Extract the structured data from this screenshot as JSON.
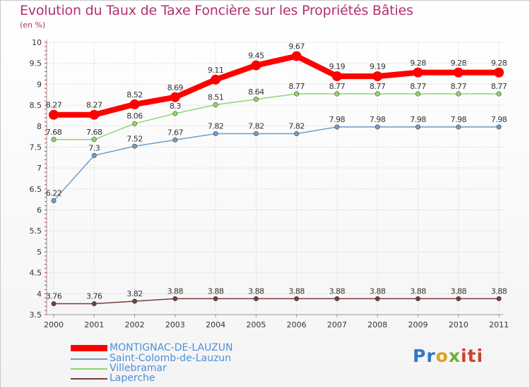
{
  "chart_data": {
    "type": "line",
    "title": "Evolution du Taux de Taxe Foncière sur les Propriétés Bâties",
    "subtitle": "(en %)",
    "x": [
      "2000",
      "2001",
      "2002",
      "2003",
      "2004",
      "2005",
      "2006",
      "2007",
      "2008",
      "2009",
      "2010",
      "2011"
    ],
    "ylim": [
      3.5,
      10
    ],
    "yticks": [
      "3.5",
      "4",
      "4.5",
      "5",
      "5.5",
      "6",
      "6.5",
      "7",
      "7.5",
      "8",
      "8.5",
      "9",
      "9.5",
      "10"
    ],
    "grid": true,
    "legend_position": "bottom-left",
    "series": [
      {
        "name": "MONTIGNAC-DE-LAUZUN",
        "color": "#ff0000",
        "values": [
          8.27,
          8.27,
          8.52,
          8.69,
          9.11,
          9.45,
          9.67,
          9.19,
          9.19,
          9.28,
          9.28,
          9.28
        ],
        "labels": [
          "8.27",
          "8.27",
          "8.52",
          "8.69",
          "9.11",
          "9.45",
          "9.67",
          "9.19",
          "9.19",
          "9.28",
          "9.28",
          "9.28"
        ]
      },
      {
        "name": "Saint-Colomb-de-Lauzun",
        "color": "#6d9ec8",
        "values": [
          6.22,
          7.3,
          7.52,
          7.67,
          7.82,
          7.82,
          7.82,
          7.98,
          7.98,
          7.98,
          7.98,
          7.98
        ],
        "labels": [
          "6.22",
          "7.3",
          "7.52",
          "7.67",
          "7.82",
          "7.82",
          "7.82",
          "7.98",
          "7.98",
          "7.98",
          "7.98",
          "7.98"
        ]
      },
      {
        "name": "Villebramar",
        "color": "#8fd66b",
        "values": [
          7.68,
          7.68,
          8.06,
          8.3,
          8.51,
          8.64,
          8.77,
          8.77,
          8.77,
          8.77,
          8.77,
          8.77
        ],
        "labels": [
          "7.68",
          "7.68",
          "8.06",
          "8.3",
          "8.51",
          "8.64",
          "8.77",
          "8.77",
          "8.77",
          "8.77",
          "8.77",
          "8.77"
        ]
      },
      {
        "name": "Laperche",
        "color": "#7a3a3a",
        "values": [
          3.76,
          3.76,
          3.82,
          3.88,
          3.88,
          3.88,
          3.88,
          3.88,
          3.88,
          3.88,
          3.88,
          3.88
        ],
        "labels": [
          "3.76",
          "3.76",
          "3.82",
          "3.88",
          "3.88",
          "3.88",
          "3.88",
          "3.88",
          "3.88",
          "3.88",
          "3.88",
          "3.88"
        ]
      }
    ]
  },
  "logo": {
    "part1": "Pr",
    "part2": "o",
    "part3": "x",
    "part4": "iti"
  }
}
